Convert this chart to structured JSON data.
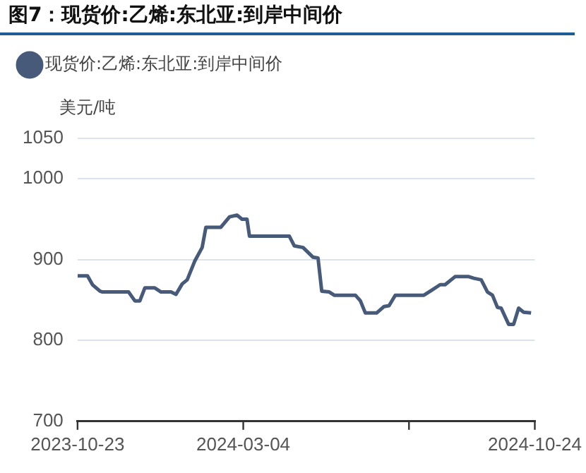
{
  "chart_data": {
    "type": "line",
    "title": "图7：现货价:乙烯:东北亚:到岸中间价",
    "ylabel": "美元/吨",
    "x": [
      "2023-10-23",
      "2023-10-31",
      "2023-11-04",
      "2023-11-10",
      "2023-11-12",
      "2023-12-03",
      "2023-12-08",
      "2023-12-12",
      "2023-12-16",
      "2023-12-24",
      "2023-12-29",
      "2024-01-06",
      "2024-01-10",
      "2024-01-15",
      "2024-01-19",
      "2024-01-25",
      "2024-01-31",
      "2024-02-03",
      "2024-02-15",
      "2024-02-22",
      "2024-02-28",
      "2024-03-03",
      "2024-03-07",
      "2024-03-09",
      "2024-04-10",
      "2024-04-14",
      "2024-04-21",
      "2024-04-29",
      "2024-05-03",
      "2024-05-06",
      "2024-05-12",
      "2024-05-16",
      "2024-06-02",
      "2024-06-06",
      "2024-06-10",
      "2024-06-19",
      "2024-06-25",
      "2024-06-29",
      "2024-07-04",
      "2024-07-27",
      "2024-08-02",
      "2024-08-09",
      "2024-08-13",
      "2024-08-21",
      "2024-09-01",
      "2024-09-05",
      "2024-09-11",
      "2024-09-16",
      "2024-09-20",
      "2024-09-24",
      "2024-09-27",
      "2024-10-03",
      "2024-10-07",
      "2024-10-11",
      "2024-10-15",
      "2024-10-21"
    ],
    "series": [
      {
        "name": "现货价:乙烯:东北亚:到岸中间价",
        "color": "#475a7a",
        "values": [
          880,
          880,
          869,
          861,
          860,
          860,
          849,
          849,
          865,
          865,
          860,
          860,
          857,
          870,
          875,
          898,
          915,
          940,
          940,
          953,
          955,
          950,
          950,
          929,
          929,
          917,
          915,
          903,
          902,
          861,
          860,
          856,
          856,
          849,
          834,
          834,
          842,
          843,
          856,
          856,
          862,
          869,
          869,
          879,
          879,
          877,
          875,
          860,
          856,
          841,
          840,
          820,
          820,
          840,
          835,
          834
        ]
      }
    ],
    "xlim": [
      "2023-10-23",
      "2024-10-24"
    ],
    "xticks": [
      "2023-10-23",
      "2024-03-04",
      {
        "value": "2024-07-15",
        "label": null
      },
      "2024-10-24"
    ],
    "ylim": [
      700,
      1050
    ],
    "yticks": [
      700,
      800,
      900,
      1000,
      1050
    ],
    "grid": "y",
    "legend": "top left",
    "marker": "none",
    "line_style": "solid"
  }
}
